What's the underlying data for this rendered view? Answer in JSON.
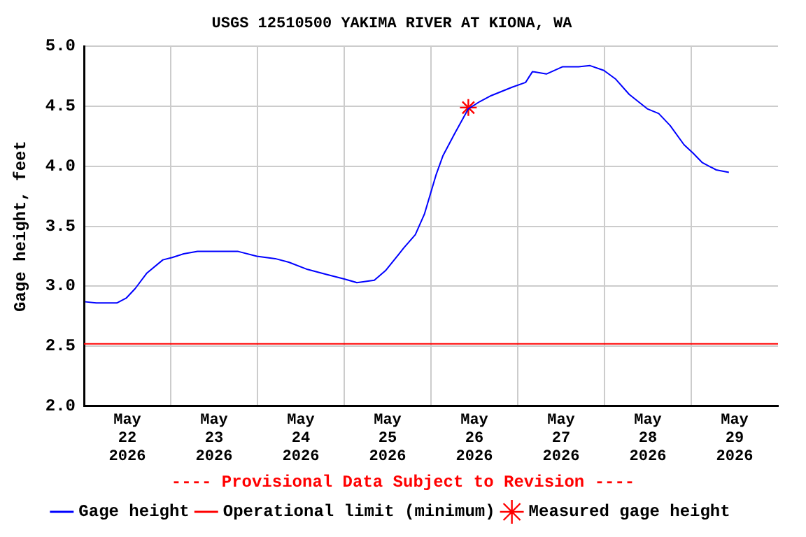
{
  "chart_data": {
    "type": "line",
    "title": "USGS 12510500 YAKIMA RIVER AT KIONA, WA",
    "ylabel": "Gage height, feet",
    "annotations": [
      "---- Provisional Data Subject to Revision ----"
    ],
    "xlim": [
      "2026-05-22",
      "2026-05-30"
    ],
    "xticks": [
      {
        "value": "2026-05-22T12:00",
        "label": "May\n22\n2026"
      },
      {
        "value": "2026-05-23",
        "label": null
      },
      {
        "value": "2026-05-23T12:00",
        "label": "May\n23\n2026"
      },
      {
        "value": "2026-05-24",
        "label": null
      },
      {
        "value": "2026-05-24T12:00",
        "label": "May\n24\n2026"
      },
      {
        "value": "2026-05-25",
        "label": null
      },
      {
        "value": "2026-05-25T12:00",
        "label": "May\n25\n2026"
      },
      {
        "value": "2026-05-26",
        "label": null
      },
      {
        "value": "2026-05-26T12:00",
        "label": "May\n26\n2026"
      },
      {
        "value": "2026-05-27",
        "label": null
      },
      {
        "value": "2026-05-27T12:00",
        "label": "May\n27\n2026"
      },
      {
        "value": "2026-05-28",
        "label": null
      },
      {
        "value": "2026-05-28T12:00",
        "label": "May\n28\n2026"
      },
      {
        "value": "2026-05-29",
        "label": null
      },
      {
        "value": "2026-05-29T12:00",
        "label": "May\n29\n2026"
      }
    ],
    "ylim": [
      2,
      5
    ],
    "yticks": [
      {
        "value": 2,
        "label": "2.0"
      },
      {
        "value": 2.5,
        "label": "2.5"
      },
      {
        "value": 3,
        "label": "3.0"
      },
      {
        "value": 3.5,
        "label": "3.5"
      },
      {
        "value": 4,
        "label": "4.0"
      },
      {
        "value": 4.5,
        "label": "4.5"
      },
      {
        "value": 5,
        "label": "5.0"
      }
    ],
    "grid": true,
    "legend": "bottom",
    "series": [
      {
        "name": "Gage height",
        "color": "#0000ff",
        "marker": "none",
        "x": [
          "2026-05-22T00:20",
          "2026-05-22T03:25",
          "2026-05-22T09:05",
          "2026-05-22T11:40",
          "2026-05-22T14:10",
          "2026-05-22T17:25",
          "2026-05-22T21:50",
          "2026-05-23T00:25",
          "2026-05-23T03:35",
          "2026-05-23T07:25",
          "2026-05-23T12:30",
          "2026-05-23T18:40",
          "2026-05-23T23:50",
          "2026-05-24T04:55",
          "2026-05-24T08:40",
          "2026-05-24T13:50",
          "2026-05-24T18:55",
          "2026-05-25T00:00",
          "2026-05-25T03:30",
          "2026-05-25T08:20",
          "2026-05-25T11:25",
          "2026-05-25T15:10",
          "2026-05-25T16:30",
          "2026-05-25T19:40",
          "2026-05-25T22:10",
          "2026-05-26T01:25",
          "2026-05-26T03:20",
          "2026-05-26T06:30",
          "2026-05-26T10:20",
          "2026-05-26T13:30",
          "2026-05-26T16:40",
          "2026-05-26T22:25",
          "2026-05-27T02:10",
          "2026-05-27T04:05",
          "2026-05-27T07:55",
          "2026-05-27T12:20",
          "2026-05-27T16:50",
          "2026-05-27T20:00",
          "2026-05-27T23:50",
          "2026-05-28T03:00",
          "2026-05-28T06:50",
          "2026-05-28T11:50",
          "2026-05-28T15:00",
          "2026-05-28T18:10",
          "2026-05-28T22:00",
          "2026-05-29T00:30",
          "2026-05-29T03:05",
          "2026-05-29T06:55",
          "2026-05-29T10:25"
        ],
        "values": [
          2.87,
          2.86,
          2.86,
          2.9,
          2.98,
          3.11,
          3.22,
          3.24,
          3.27,
          3.29,
          3.29,
          3.29,
          3.25,
          3.23,
          3.2,
          3.14,
          3.1,
          3.06,
          3.03,
          3.05,
          3.13,
          3.27,
          3.32,
          3.43,
          3.6,
          3.93,
          4.09,
          4.27,
          4.48,
          4.54,
          4.59,
          4.66,
          4.7,
          4.79,
          4.77,
          4.83,
          4.83,
          4.84,
          4.8,
          4.73,
          4.6,
          4.48,
          4.44,
          4.34,
          4.18,
          4.11,
          4.03,
          3.97,
          3.95
        ]
      },
      {
        "name": "Measured gage height",
        "color": "#ff0000",
        "type": "scatter",
        "marker": "cross",
        "x": [
          "2026-05-26T10:20"
        ],
        "values": [
          4.49
        ]
      }
    ],
    "ref_lines": [
      {
        "axis": "y",
        "value": 2.52,
        "label": "Operational limit (minimum)",
        "color": "#ff0000",
        "line_style": "solid"
      }
    ]
  }
}
